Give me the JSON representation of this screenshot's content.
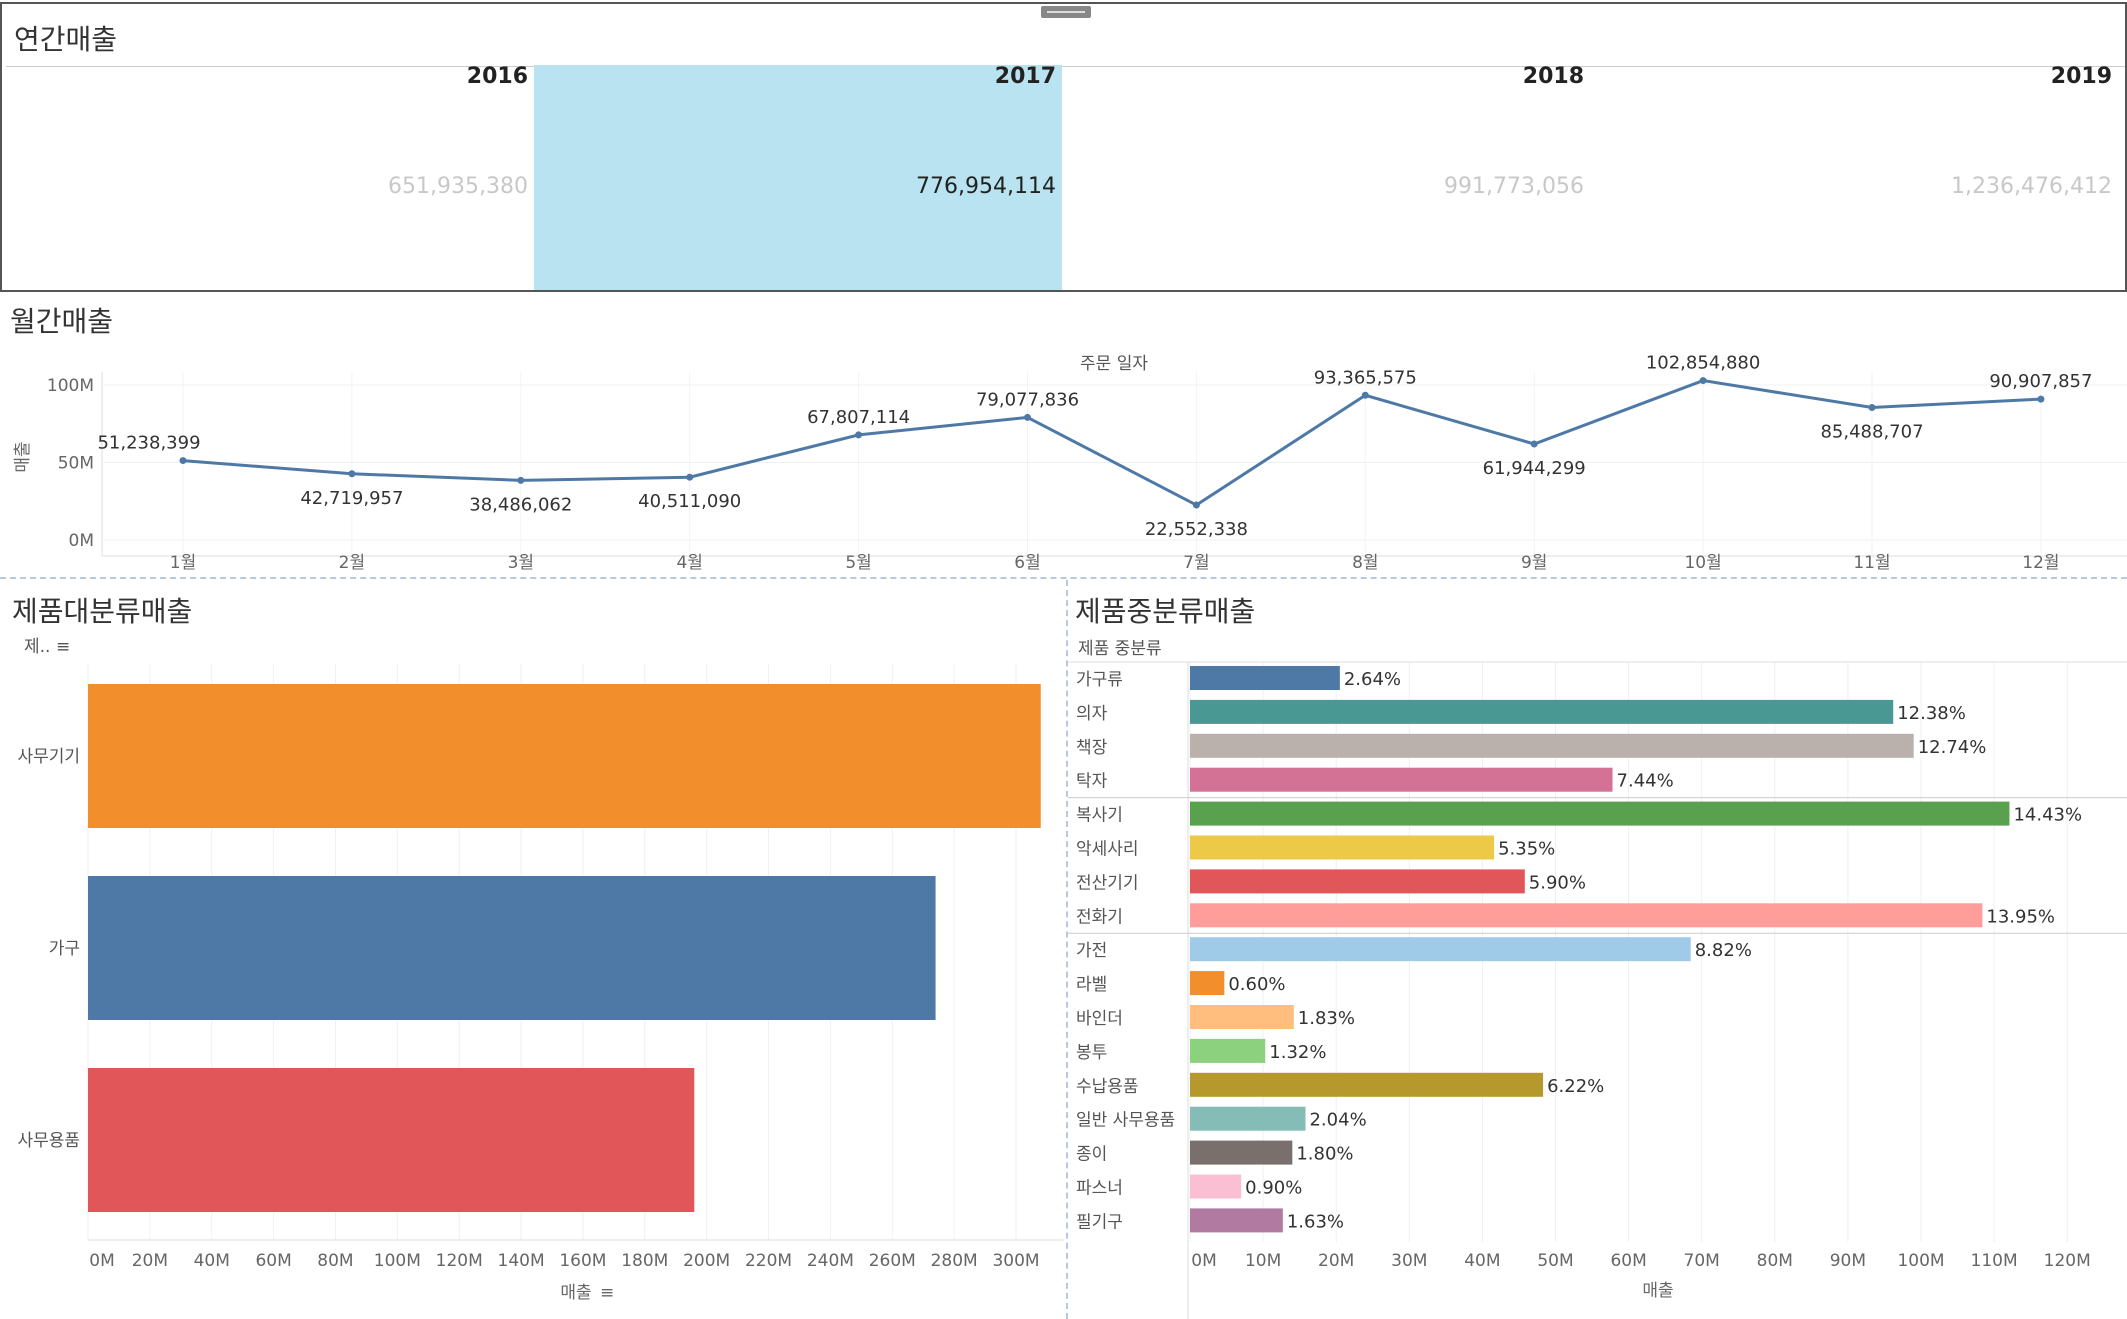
{
  "annual": {
    "title": "연간매출",
    "years": [
      {
        "year": "2016",
        "value": "651,935,380",
        "selected": false
      },
      {
        "year": "2017",
        "value": "776,954,114",
        "selected": true
      },
      {
        "year": "2018",
        "value": "991,773,056",
        "selected": false
      },
      {
        "year": "2019",
        "value": "1,236,476,412",
        "selected": false
      }
    ]
  },
  "monthly": {
    "title": "월간매출",
    "header": "주문 일자",
    "ylabel": "매출",
    "yticks": [
      "100M",
      "50M",
      "0M"
    ],
    "months": [
      "1월",
      "2월",
      "3월",
      "4월",
      "5월",
      "6월",
      "7월",
      "8월",
      "9월",
      "10월",
      "11월",
      "12월"
    ],
    "value_labels": [
      "51,238,399",
      "42,719,957",
      "38,486,062",
      "40,511,090",
      "67,807,114",
      "79,077,836",
      "22,552,338",
      "93,365,575",
      "61,944,299",
      "102,854,880",
      "85,488,707",
      "90,907,857"
    ]
  },
  "category": {
    "title": "제품대분류매출",
    "header": "제..",
    "xlabel": "매출",
    "xticks": [
      "0M",
      "20M",
      "40M",
      "60M",
      "80M",
      "100M",
      "120M",
      "140M",
      "160M",
      "180M",
      "200M",
      "220M",
      "240M",
      "260M",
      "280M",
      "300M"
    ],
    "labels": [
      "사무기기",
      "가구",
      "사무용품"
    ]
  },
  "subcategory": {
    "title": "제품중분류매출",
    "header": "제품 중분류",
    "xlabel": "매출",
    "xticks": [
      "0M",
      "10M",
      "20M",
      "30M",
      "40M",
      "50M",
      "60M",
      "70M",
      "80M",
      "90M",
      "100M",
      "110M",
      "120M"
    ],
    "labels": [
      "가구류",
      "의자",
      "책장",
      "탁자",
      "복사기",
      "악세사리",
      "전산기기",
      "전화기",
      "가전",
      "라벨",
      "바인더",
      "봉투",
      "수납용품",
      "일반 사무용품",
      "종이",
      "파스너",
      "필기구"
    ],
    "pct_labels": [
      "2.64%",
      "12.38%",
      "12.74%",
      "7.44%",
      "14.43%",
      "5.35%",
      "5.90%",
      "13.95%",
      "8.82%",
      "0.60%",
      "1.83%",
      "1.32%",
      "6.22%",
      "2.04%",
      "1.80%",
      "0.90%",
      "1.63%"
    ],
    "colors": [
      "#4e79a7",
      "#499894",
      "#bab0ac",
      "#d37295",
      "#59a14f",
      "#edc948",
      "#e15759",
      "#ff9d9a",
      "#a0cbe8",
      "#f28e2b",
      "#ffbe7d",
      "#8cd17d",
      "#b6992d",
      "#86bcb6",
      "#79706e",
      "#fabfd2",
      "#b07aa1"
    ]
  },
  "chart_data": [
    {
      "type": "line",
      "title": "월간매출",
      "xlabel": "주문 일자",
      "ylabel": "매출",
      "x": [
        "1월",
        "2월",
        "3월",
        "4월",
        "5월",
        "6월",
        "7월",
        "8월",
        "9월",
        "10월",
        "11월",
        "12월"
      ],
      "series": [
        {
          "values": [
            51238399,
            42719957,
            38486062,
            40511090,
            67807114,
            79077836,
            22552338,
            93365575,
            61944299,
            102854880,
            85488707,
            90907857
          ]
        }
      ],
      "ylim": [
        0,
        110000000
      ],
      "grid": true
    },
    {
      "type": "bar",
      "orientation": "horizontal",
      "title": "제품대분류매출",
      "xlabel": "매출",
      "categories": [
        "사무기기",
        "가구",
        "사무용품"
      ],
      "values": [
        308000000,
        274000000,
        196000000
      ],
      "colors": [
        "#f28e2b",
        "#4e79a7",
        "#e15759"
      ],
      "xlim": [
        0,
        320000000
      ],
      "grid": true
    },
    {
      "type": "bar",
      "orientation": "horizontal",
      "title": "제품중분류매출",
      "xlabel": "매출",
      "categories": [
        "가구류",
        "의자",
        "책장",
        "탁자",
        "복사기",
        "악세사리",
        "전산기기",
        "전화기",
        "가전",
        "라벨",
        "바인더",
        "봉투",
        "수납용품",
        "일반 사무용품",
        "종이",
        "파스너",
        "필기구"
      ],
      "values": [
        20500000,
        96200000,
        99000000,
        57800000,
        112100000,
        41600000,
        45800000,
        108400000,
        68500000,
        4700000,
        14200000,
        10300000,
        48300000,
        15800000,
        14000000,
        7000000,
        12700000
      ],
      "xlim": [
        0,
        128000000
      ],
      "grid": true
    }
  ]
}
